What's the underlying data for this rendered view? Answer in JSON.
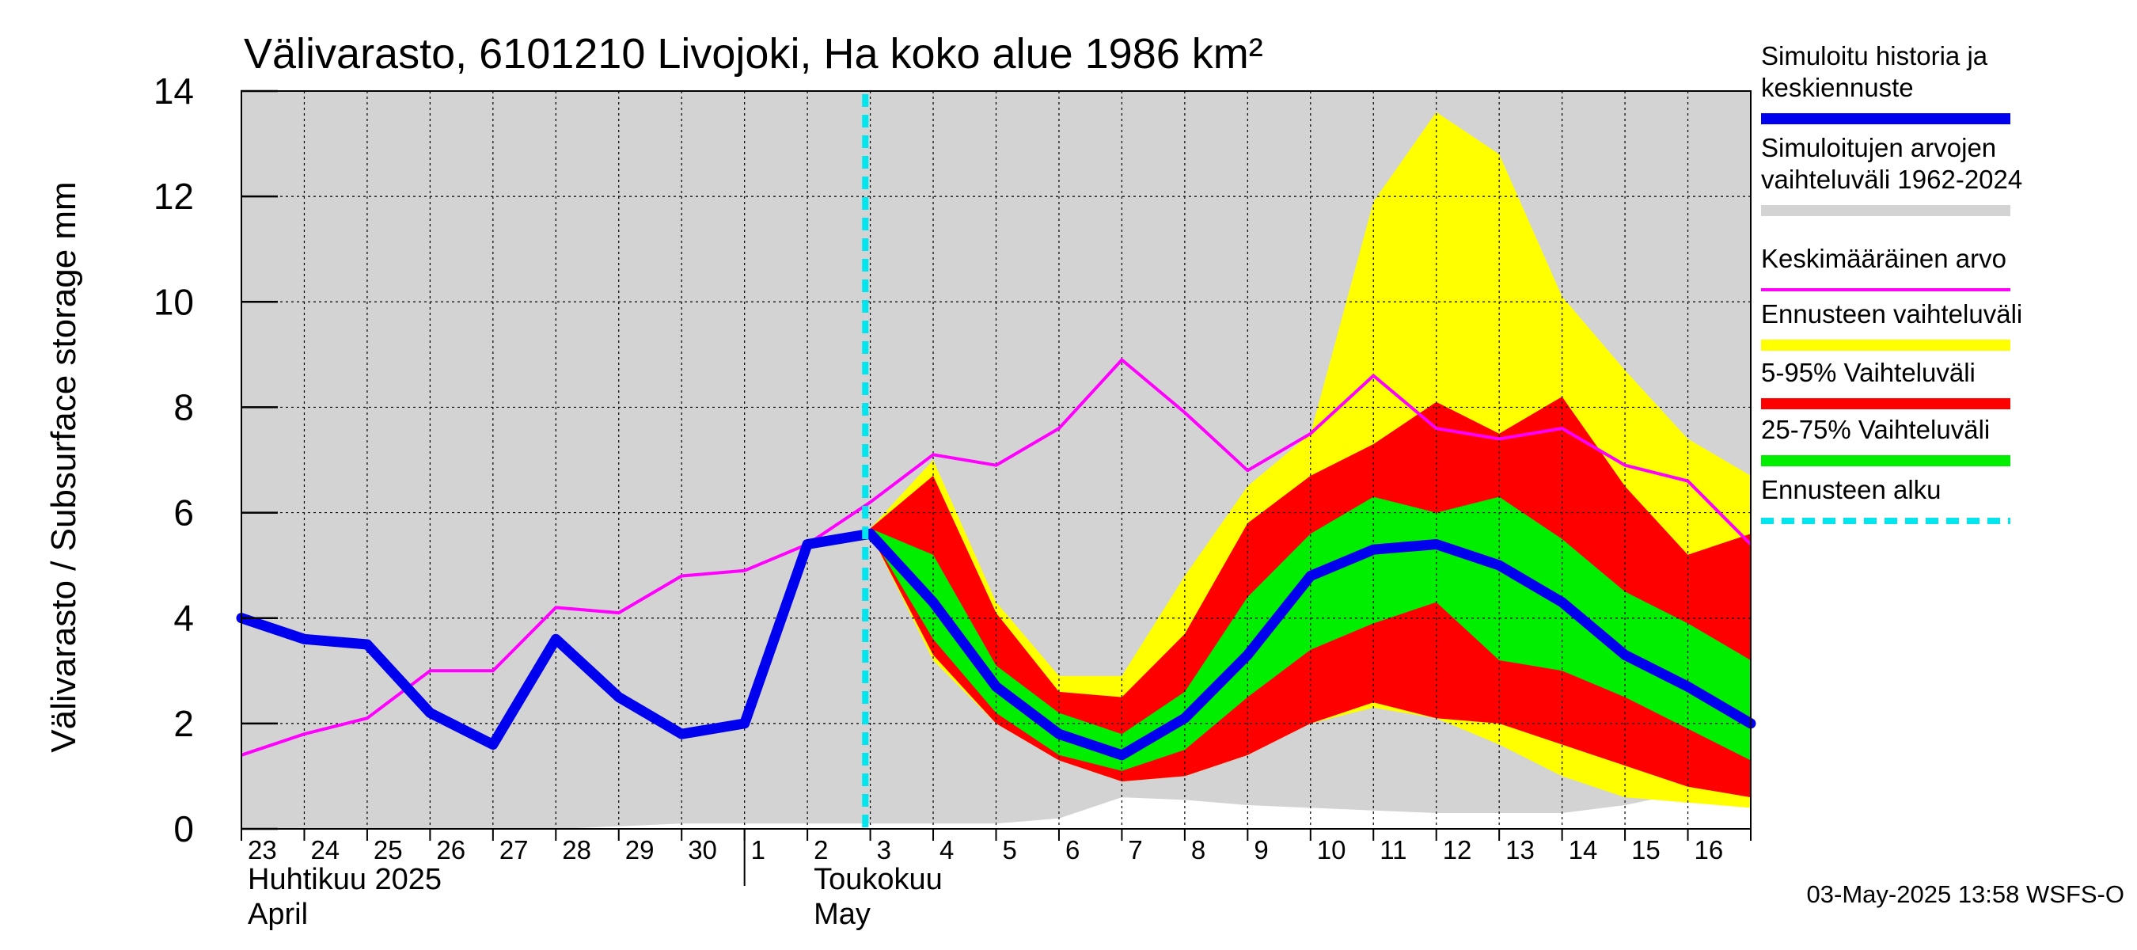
{
  "chart_data": {
    "type": "area",
    "title": "Välivarasto, 6101210 Livojoki, Ha koko alue 1986 km²",
    "ylabel": "Välivarasto / Subsurface storage  mm",
    "ylim": [
      0,
      14
    ],
    "yticks": [
      0,
      2,
      4,
      6,
      8,
      10,
      12,
      14
    ],
    "x_ticks": [
      "23",
      "24",
      "25",
      "26",
      "27",
      "28",
      "29",
      "30",
      "1",
      "2",
      "3",
      "4",
      "5",
      "6",
      "7",
      "8",
      "9",
      "10",
      "11",
      "12",
      "13",
      "14",
      "15",
      "16"
    ],
    "months": [
      {
        "line1": "Huhtikuu  2025",
        "line2": "April"
      },
      {
        "line1": "Toukokuu",
        "line2": "May"
      }
    ],
    "grid": true,
    "legend_placement": "right",
    "forecast_start_x": 10,
    "series": [
      {
        "name": "Simuloitujen arvojen vaihteluväli 1962-2024",
        "role": "hist_range",
        "color": "#d3d3d3",
        "x": [
          0,
          1,
          2,
          3,
          4,
          5,
          6,
          7,
          8,
          9,
          10,
          11,
          12,
          13,
          14,
          15,
          16,
          17,
          18,
          19,
          20,
          21,
          22,
          23,
          24
        ],
        "low": [
          0,
          0,
          0,
          0,
          0,
          0,
          0.05,
          0.1,
          0.1,
          0.1,
          0.1,
          0.1,
          0.1,
          0.2,
          0.6,
          0.55,
          0.45,
          0.4,
          0.35,
          0.3,
          0.3,
          0.3,
          0.45,
          0.7,
          0.6
        ],
        "high": [
          14,
          14,
          14,
          14,
          14,
          14,
          14,
          14,
          14,
          14,
          14,
          14,
          14,
          14,
          14,
          14,
          14,
          14,
          14,
          14,
          14,
          14,
          14,
          14,
          14
        ]
      },
      {
        "name": "Ennusteen vaihteluväli",
        "role": "fc_minmax",
        "color": "#ffff00",
        "x": [
          10,
          11,
          12,
          13,
          14,
          15,
          16,
          17,
          18,
          19,
          20,
          21,
          22,
          23,
          24
        ],
        "low": [
          5.6,
          3.2,
          2.0,
          1.3,
          0.9,
          1.0,
          1.4,
          2.0,
          2.3,
          2.1,
          1.6,
          1.0,
          0.6,
          0.5,
          0.4
        ],
        "high": [
          5.7,
          7.0,
          4.3,
          2.9,
          2.9,
          4.8,
          6.5,
          7.5,
          11.9,
          13.6,
          12.8,
          10.1,
          8.7,
          7.4,
          6.7
        ]
      },
      {
        "name": "5-95% Vaihteluväli",
        "role": "fc_5_95",
        "color": "#ff0000",
        "x": [
          10,
          11,
          12,
          13,
          14,
          15,
          16,
          17,
          18,
          19,
          20,
          21,
          22,
          23,
          24
        ],
        "low": [
          5.6,
          3.3,
          2.0,
          1.3,
          0.9,
          1.0,
          1.4,
          2.0,
          2.4,
          2.1,
          2.0,
          1.6,
          1.2,
          0.8,
          0.6
        ],
        "high": [
          5.7,
          6.7,
          4.1,
          2.6,
          2.5,
          3.7,
          5.8,
          6.7,
          7.3,
          8.1,
          7.5,
          8.2,
          6.5,
          5.2,
          5.6
        ]
      },
      {
        "name": "25-75% Vaihteluväli",
        "role": "fc_25_75",
        "color": "#00ee00",
        "x": [
          10,
          11,
          12,
          13,
          14,
          15,
          16,
          17,
          18,
          19,
          20,
          21,
          22,
          23,
          24
        ],
        "low": [
          5.6,
          3.6,
          2.2,
          1.4,
          1.1,
          1.5,
          2.5,
          3.4,
          3.9,
          4.3,
          3.2,
          3.0,
          2.5,
          1.9,
          1.3
        ],
        "high": [
          5.7,
          5.2,
          3.1,
          2.2,
          1.8,
          2.6,
          4.4,
          5.6,
          6.3,
          6.0,
          6.3,
          5.5,
          4.5,
          3.9,
          3.2
        ]
      },
      {
        "name": "Keskimääräinen arvo",
        "role": "mean",
        "color": "#ff00ff",
        "x": [
          0,
          1,
          2,
          3,
          4,
          5,
          6,
          7,
          8,
          9,
          10,
          11,
          12,
          13,
          14,
          15,
          16,
          17,
          18,
          19,
          20,
          21,
          22,
          23,
          24
        ],
        "y": [
          1.4,
          1.8,
          2.1,
          3.0,
          3.0,
          4.2,
          4.1,
          4.8,
          4.9,
          5.4,
          6.2,
          7.1,
          6.9,
          7.6,
          8.9,
          7.9,
          6.8,
          7.5,
          8.6,
          7.6,
          7.4,
          7.6,
          6.9,
          6.6,
          5.4
        ]
      },
      {
        "name": "Simuloitu historia ja keskiennuste",
        "role": "median",
        "color": "#0000ee",
        "x": [
          0,
          1,
          2,
          3,
          4,
          5,
          6,
          7,
          8,
          9,
          10,
          11,
          12,
          13,
          14,
          15,
          16,
          17,
          18,
          19,
          20,
          21,
          22,
          23,
          24
        ],
        "y": [
          4.0,
          3.6,
          3.5,
          2.2,
          1.6,
          3.6,
          2.5,
          1.8,
          2.0,
          5.4,
          5.6,
          4.3,
          2.7,
          1.8,
          1.4,
          2.1,
          3.3,
          4.8,
          5.3,
          5.4,
          5.0,
          4.3,
          3.3,
          2.7,
          2.0
        ]
      }
    ],
    "legend": [
      {
        "lines": [
          "Simuloitu historia ja",
          "keskiennuste"
        ],
        "color": "#0000ee",
        "style": "thick"
      },
      {
        "lines": [
          "Simuloitujen arvojen",
          "vaihteluväli 1962-2024"
        ],
        "color": "#d3d3d3",
        "style": "thick"
      },
      {
        "lines": [
          "Keskimääräinen arvo"
        ],
        "color": "#ff00ff",
        "style": "thin"
      },
      {
        "lines": [
          "Ennusteen vaihteluväli"
        ],
        "color": "#ffff00",
        "style": "thick"
      },
      {
        "lines": [
          "5-95% Vaihteluväli"
        ],
        "color": "#ff0000",
        "style": "thick"
      },
      {
        "lines": [
          "25-75% Vaihteluväli"
        ],
        "color": "#00ee00",
        "style": "thick"
      },
      {
        "lines": [
          "Ennusteen alku"
        ],
        "color": "#00e5ee",
        "style": "dashed"
      }
    ],
    "footer": "03-May-2025 13:58 WSFS-O"
  }
}
